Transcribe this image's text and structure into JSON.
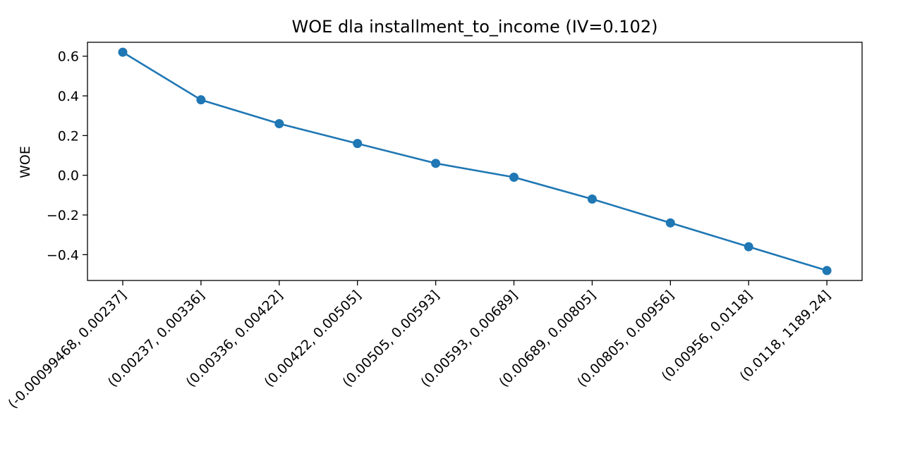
{
  "chart_data": {
    "type": "line",
    "title": "WOE dla installment_to_income (IV=0.102)",
    "xlabel": "",
    "ylabel": "WOE",
    "categories": [
      "(-0.00099468, 0.00237]",
      "(0.00237, 0.00336]",
      "(0.00336, 0.00422]",
      "(0.00422, 0.00505]",
      "(0.00505, 0.00593]",
      "(0.00593, 0.00689]",
      "(0.00689, 0.00805]",
      "(0.00805, 0.00956]",
      "(0.00956, 0.0118]",
      "(0.0118, 1189.24]"
    ],
    "series": [
      {
        "values": [
          0.62,
          0.38,
          0.26,
          0.16,
          0.06,
          -0.01,
          -0.12,
          -0.24,
          -0.36,
          -0.48
        ],
        "color": "#1f77b4",
        "marker": "circle"
      }
    ],
    "ylim": [
      -0.53,
      0.67
    ],
    "yticks": [
      -0.4,
      -0.2,
      0.0,
      0.2,
      0.4,
      0.6
    ],
    "ytick_labels": [
      "−0.4",
      "−0.2",
      "0.0",
      "0.2",
      "0.4",
      "0.6"
    ],
    "grid": false,
    "legend": "none"
  }
}
